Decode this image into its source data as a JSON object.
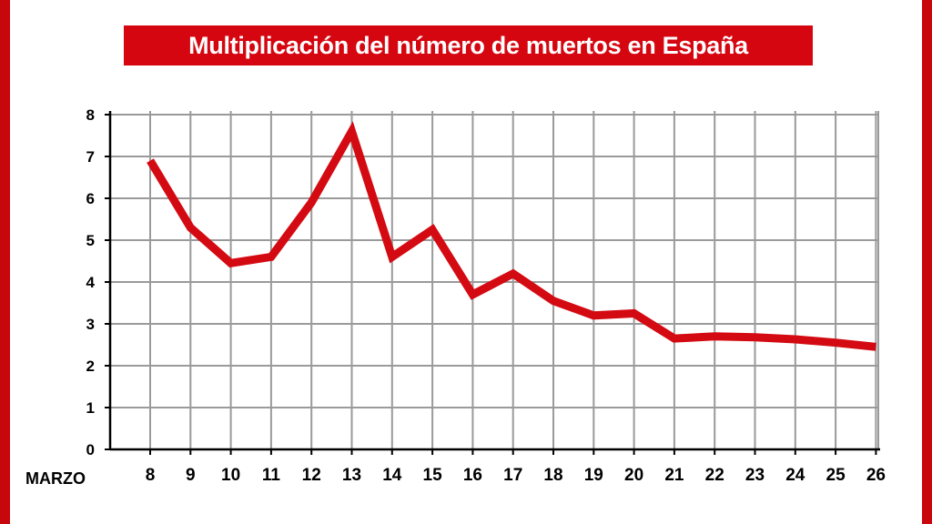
{
  "title": "Multiplicación del número de muertos en España",
  "colors": {
    "accent": "#d50610",
    "border": "#c8070d",
    "line": "#d40a12",
    "grid": "#9a9a9a",
    "axis": "#000000",
    "background": "#ffffff"
  },
  "chart_data": {
    "type": "line",
    "title": "Multiplicación del número de muertos en España",
    "xlabel": "MARZO",
    "ylabel": "",
    "x": [
      "8",
      "9",
      "10",
      "11",
      "12",
      "13",
      "14",
      "15",
      "16",
      "17",
      "18",
      "19",
      "20",
      "21",
      "22",
      "23",
      "24",
      "25",
      "26"
    ],
    "series": [
      {
        "values": [
          6.9,
          5.3,
          4.45,
          4.6,
          5.9,
          7.6,
          4.6,
          5.25,
          3.7,
          4.2,
          3.55,
          3.2,
          3.25,
          2.65,
          2.7,
          2.68,
          2.63,
          2.55,
          2.45
        ]
      }
    ],
    "yticks": [
      "0",
      "1",
      "2",
      "3",
      "4",
      "5",
      "6",
      "7",
      "8"
    ],
    "ylim": [
      0,
      8
    ],
    "grid": true,
    "legend": "none"
  }
}
